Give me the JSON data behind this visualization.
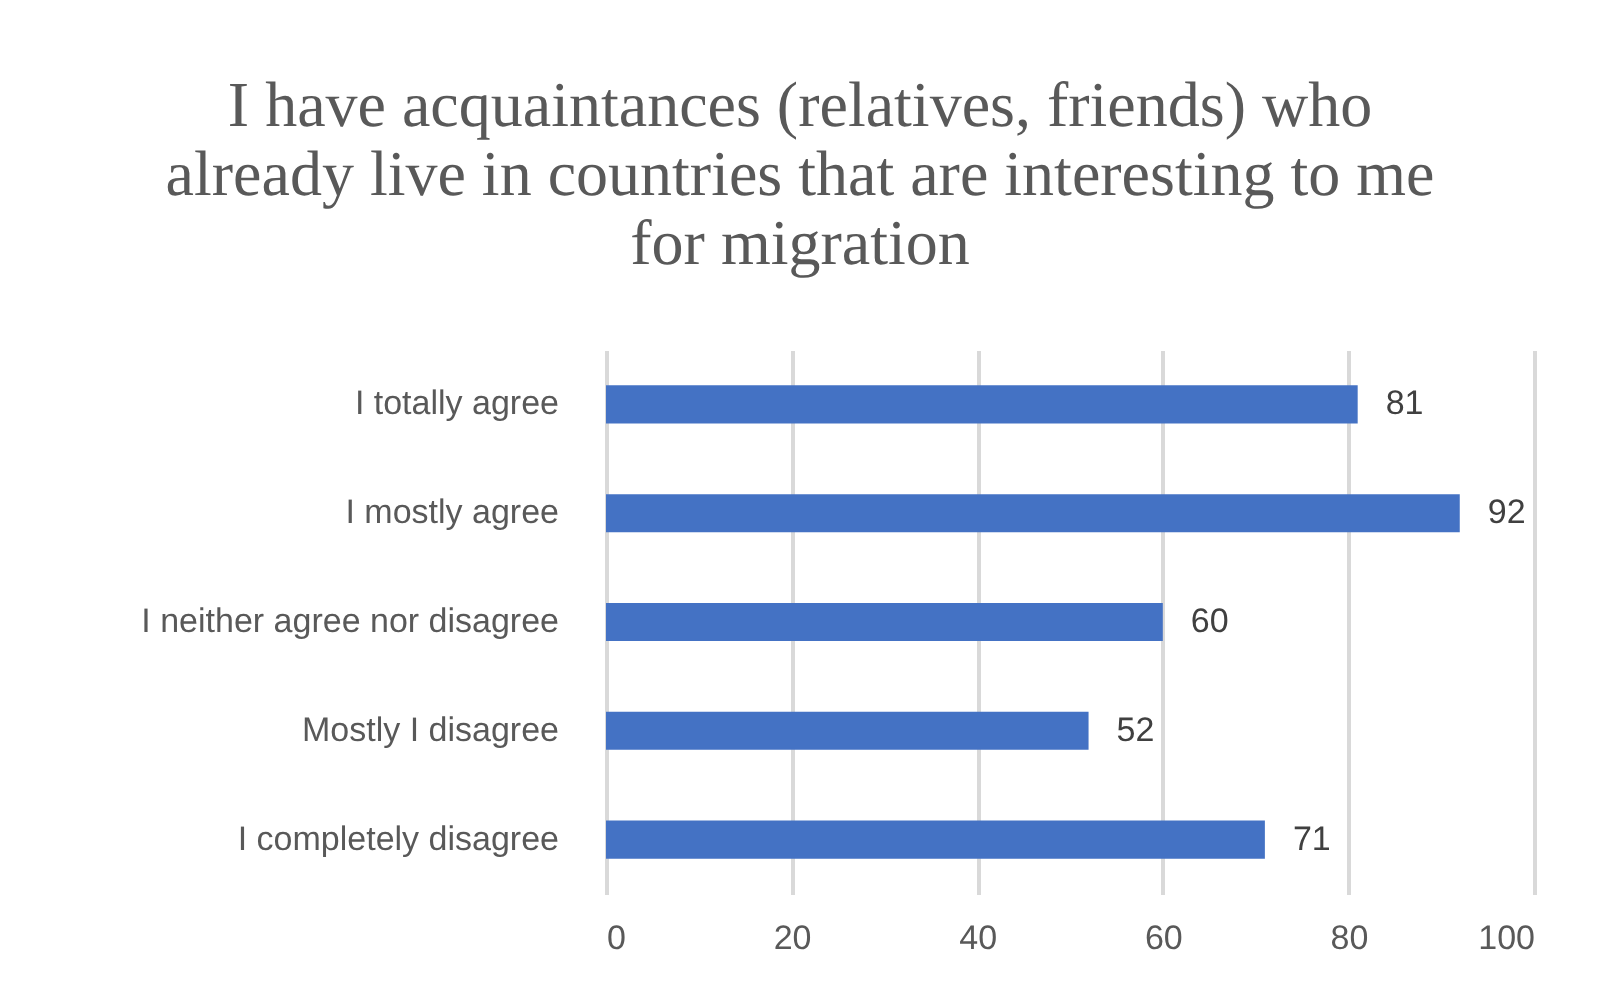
{
  "chart_data": {
    "type": "bar",
    "orientation": "horizontal",
    "title": "I have acquaintances (relatives, friends) who already live in countries that are interesting to me for migration",
    "categories": [
      "I totally agree",
      "I mostly agree",
      "I neither agree nor disagree",
      "Mostly I disagree",
      "I completely disagree"
    ],
    "values": [
      81,
      92,
      60,
      52,
      71
    ],
    "color": "#4472c4",
    "xlim": [
      0,
      100
    ],
    "xticks": [
      0,
      20,
      40,
      60,
      80,
      100
    ],
    "grid": "x",
    "data_labels": true
  }
}
